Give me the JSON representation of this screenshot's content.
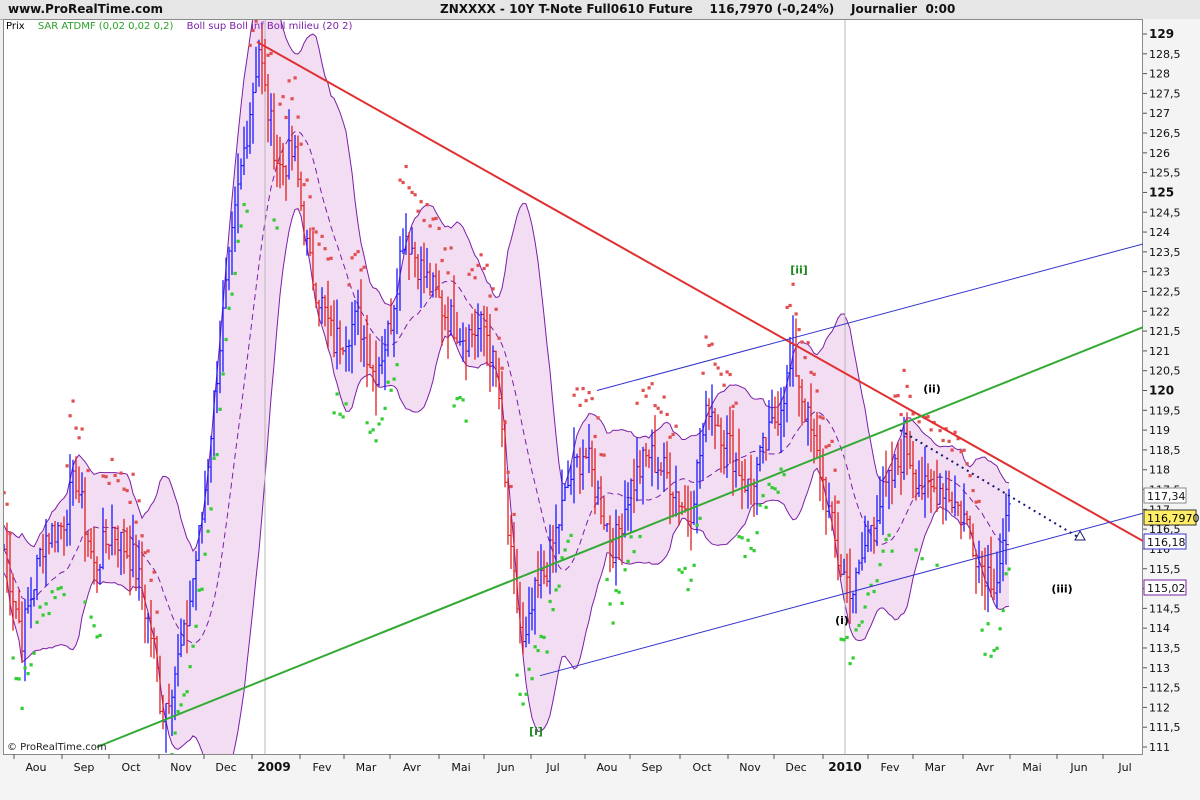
{
  "header": {
    "brand": "www.ProRealTime.com",
    "title": "ZNXXXX - 10Y T-Note Full0610 Future    116,7970 (-0,24%)    Journalier  0:00"
  },
  "legend": {
    "price": "Prix",
    "sar": "SAR ATDMF (0,02 0,02 0,2)",
    "boll": "Boll sup Boll inf Boll milieu (20 2)"
  },
  "watermark": "© ProRealTime.com",
  "colors": {
    "candle_up": "#1a1aff",
    "candle_down": "#e02020",
    "sar_up": "#33cc33",
    "sar_down": "#e05050",
    "boll": "#7a1fa8",
    "boll_fill": "#f3ddf3",
    "resistance": "#e03030",
    "channel_green": "#33aa33",
    "channel_blue": "#3333cc"
  },
  "chart_data": {
    "type": "line",
    "title": "ZNXXXX - 10Y T-Note Full0610 Future",
    "last_price": "116,7970",
    "change": "(-0,24%)",
    "period": "Journalier",
    "ylim": [
      111,
      129.2
    ],
    "yticks": [
      "111",
      "111,5",
      "112",
      "112,5",
      "113",
      "113,5",
      "114",
      "114,5",
      "115",
      "115,5",
      "116",
      "116,5",
      "117",
      "117,5",
      "118",
      "118,5",
      "119",
      "119,5",
      "120",
      "120,5",
      "121",
      "121,5",
      "122",
      "122,5",
      "123",
      "123,5",
      "124",
      "124,5",
      "125",
      "125,5",
      "126",
      "126,5",
      "127",
      "127,5",
      "128",
      "128,5",
      "129"
    ],
    "bold_yticks": [
      "120",
      "125",
      "129"
    ],
    "xticks": [
      "Aou",
      "Sep",
      "Oct",
      "Nov",
      "Dec",
      "2009",
      "Fev",
      "Mar",
      "Avr",
      "Mai",
      "Jun",
      "Jul",
      "Aou",
      "Sep",
      "Oct",
      "Nov",
      "Dec",
      "2010",
      "Fev",
      "Mar",
      "Avr",
      "Mai",
      "Jun",
      "Jul"
    ],
    "bold_xticks": [
      "2009",
      "2010"
    ],
    "price_anchors": [
      {
        "t": 0,
        "p": 116.0
      },
      {
        "t": 18,
        "p": 113.8
      },
      {
        "t": 40,
        "p": 116.3
      },
      {
        "t": 58,
        "p": 116.6
      },
      {
        "t": 72,
        "p": 117.8
      },
      {
        "t": 90,
        "p": 115.5
      },
      {
        "t": 108,
        "p": 116.5
      },
      {
        "t": 130,
        "p": 115.7
      },
      {
        "t": 150,
        "p": 113.5
      },
      {
        "t": 158,
        "p": 111.8
      },
      {
        "t": 180,
        "p": 113.7
      },
      {
        "t": 198,
        "p": 116.8
      },
      {
        "t": 215,
        "p": 121.0
      },
      {
        "t": 235,
        "p": 125.2
      },
      {
        "t": 255,
        "p": 128.7
      },
      {
        "t": 262,
        "p": 127.3
      },
      {
        "t": 275,
        "p": 125.6
      },
      {
        "t": 290,
        "p": 126.0
      },
      {
        "t": 305,
        "p": 123.2
      },
      {
        "t": 330,
        "p": 121.2
      },
      {
        "t": 355,
        "p": 121.8
      },
      {
        "t": 370,
        "p": 120.4
      },
      {
        "t": 385,
        "p": 121.5
      },
      {
        "t": 400,
        "p": 124.1
      },
      {
        "t": 418,
        "p": 123.0
      },
      {
        "t": 440,
        "p": 122.0
      },
      {
        "t": 460,
        "p": 121.4
      },
      {
        "t": 482,
        "p": 121.6
      },
      {
        "t": 495,
        "p": 119.8
      },
      {
        "t": 505,
        "p": 116.0
      },
      {
        "t": 520,
        "p": 113.3
      },
      {
        "t": 530,
        "p": 114.7
      },
      {
        "t": 545,
        "p": 115.7
      },
      {
        "t": 565,
        "p": 117.7
      },
      {
        "t": 580,
        "p": 118.5
      },
      {
        "t": 595,
        "p": 117.3
      },
      {
        "t": 610,
        "p": 116.0
      },
      {
        "t": 625,
        "p": 117.5
      },
      {
        "t": 645,
        "p": 118.4
      },
      {
        "t": 665,
        "p": 117.8
      },
      {
        "t": 685,
        "p": 116.8
      },
      {
        "t": 705,
        "p": 119.7
      },
      {
        "t": 725,
        "p": 118.6
      },
      {
        "t": 745,
        "p": 117.5
      },
      {
        "t": 765,
        "p": 118.8
      },
      {
        "t": 790,
        "p": 120.8
      },
      {
        "t": 803,
        "p": 119.3
      },
      {
        "t": 818,
        "p": 117.8
      },
      {
        "t": 835,
        "p": 115.6
      },
      {
        "t": 850,
        "p": 114.9
      },
      {
        "t": 868,
        "p": 116.8
      },
      {
        "t": 885,
        "p": 117.6
      },
      {
        "t": 902,
        "p": 118.6
      },
      {
        "t": 920,
        "p": 117.4
      },
      {
        "t": 940,
        "p": 117.6
      },
      {
        "t": 960,
        "p": 116.8
      },
      {
        "t": 978,
        "p": 115.6
      },
      {
        "t": 992,
        "p": 115.2
      },
      {
        "t": 1005,
        "p": 116.8
      }
    ],
    "lines": [
      {
        "name": "resistance",
        "from": [
          257,
          128.8
        ],
        "to": [
          1143,
          116.2
        ]
      },
      {
        "name": "green-channel",
        "from": [
          97,
          111.0
        ],
        "to": [
          1143,
          121.6
        ]
      },
      {
        "name": "blue-upper",
        "from": [
          597,
          120.0
        ],
        "to": [
          1143,
          123.7
        ]
      },
      {
        "name": "blue-lower",
        "from": [
          540,
          112.8
        ],
        "to": [
          1143,
          116.9
        ]
      }
    ],
    "projection": {
      "from": [
        900,
        119.0
      ],
      "to": [
        1078,
        116.3
      ]
    },
    "price_labels": [
      {
        "text": "117,34",
        "v": 117.34,
        "style": "plain"
      },
      {
        "text": "116,7970",
        "v": 116.8,
        "style": "highlight"
      },
      {
        "text": "116,18",
        "v": 116.18,
        "style": "blue"
      },
      {
        "text": "115,02",
        "v": 115.02,
        "style": "purple"
      }
    ],
    "annotations": [
      {
        "text": "[ii]",
        "t": 795,
        "v": 122.95,
        "color": "#1a8a1a"
      },
      {
        "text": "[i]",
        "t": 532,
        "v": 111.3,
        "color": "#1a8a1a"
      },
      {
        "text": "(ii)",
        "t": 928,
        "v": 119.95,
        "color": "#000"
      },
      {
        "text": "(i)",
        "t": 838,
        "v": 114.1,
        "color": "#000"
      },
      {
        "text": "(iii)",
        "t": 1058,
        "v": 114.9,
        "color": "#000"
      }
    ]
  }
}
